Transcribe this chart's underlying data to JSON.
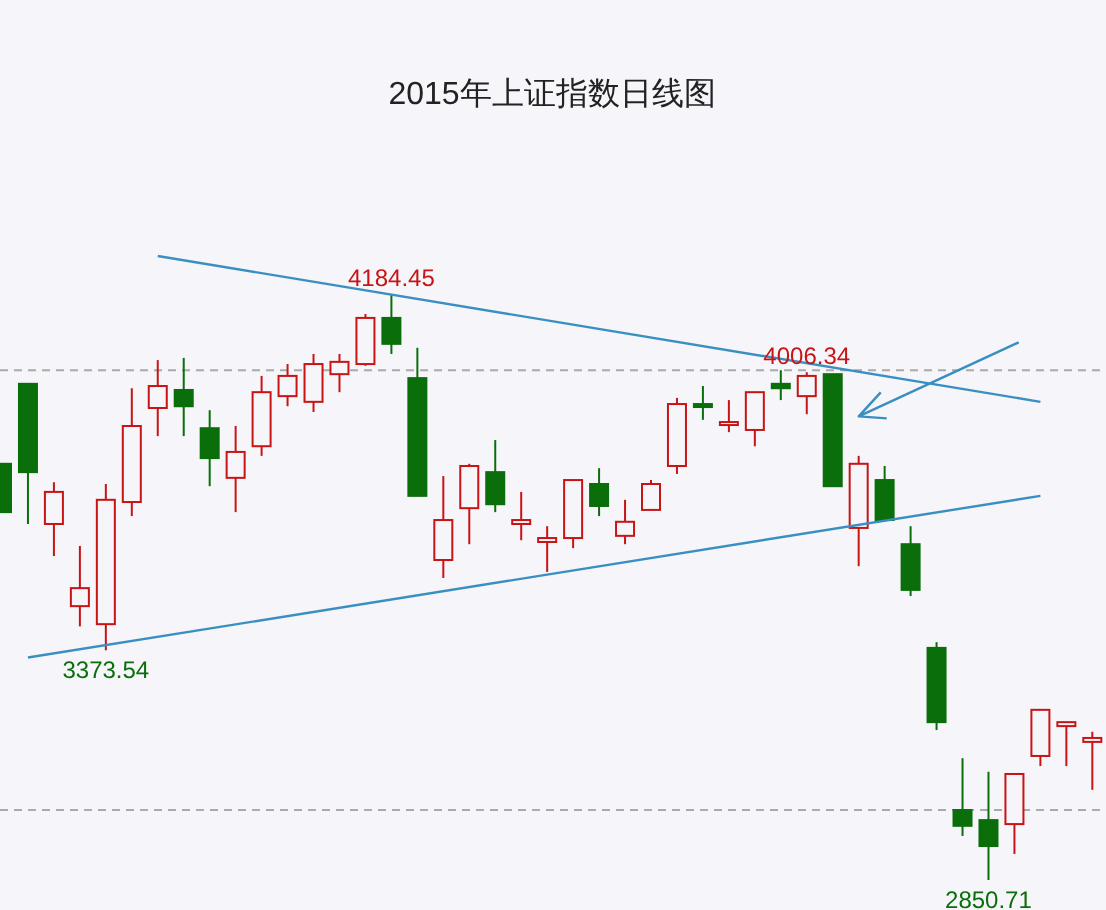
{
  "chart_data": {
    "type": "candlestick",
    "title": "2015年上证指数日线图",
    "categories": [
      null,
      null,
      null,
      null,
      null,
      null,
      null,
      null,
      null,
      null,
      null,
      null,
      null,
      null,
      null,
      null,
      null,
      null,
      null,
      null,
      null,
      null,
      null,
      null,
      null,
      null,
      null,
      null,
      null,
      null,
      null,
      null,
      null,
      null,
      null,
      null,
      null,
      null,
      null,
      null,
      null,
      null,
      null
    ],
    "ohlc": [
      [
        3798,
        3798,
        3688,
        3688
      ],
      [
        3980,
        3980,
        3661,
        3779
      ],
      [
        3661,
        3756,
        3588,
        3734
      ],
      [
        3474,
        3611,
        3428,
        3515
      ],
      [
        3433,
        3752,
        3373.54,
        3716
      ],
      [
        3711,
        3970,
        3679,
        3884
      ],
      [
        3925,
        4034,
        3861,
        3975
      ],
      [
        3966,
        4039,
        3861,
        3929
      ],
      [
        3879,
        3920,
        3747,
        3811
      ],
      [
        3766,
        3884,
        3688,
        3825
      ],
      [
        3838,
        3998,
        3816,
        3961
      ],
      [
        3952,
        4025,
        3929,
        3998
      ],
      [
        3939,
        4048,
        3916,
        4025
      ],
      [
        4002,
        4048,
        3961,
        4030
      ],
      [
        4025,
        4139,
        4021,
        4130
      ],
      [
        4130,
        4184.45,
        4048,
        4071
      ],
      [
        3993,
        4062,
        3725,
        3725
      ],
      [
        3579,
        3770,
        3538,
        3670
      ],
      [
        3697,
        3798,
        3615,
        3793
      ],
      [
        3779,
        3852,
        3688,
        3706
      ],
      [
        3661,
        3734,
        3624,
        3670
      ],
      [
        3620,
        3656,
        3552,
        3629
      ],
      [
        3629,
        3761,
        3606,
        3761
      ],
      [
        3752,
        3788,
        3679,
        3702
      ],
      [
        3634,
        3716,
        3615,
        3666
      ],
      [
        3693,
        3761,
        3693,
        3752
      ],
      [
        3793,
        3948,
        3775,
        3934
      ],
      [
        3934,
        3975,
        3898,
        3929
      ],
      [
        3888,
        3943,
        3870,
        3893
      ],
      [
        3875,
        3961,
        3838,
        3961
      ],
      [
        3980,
        4011,
        3943,
        3970
      ],
      [
        3952,
        4006.34,
        3911,
        3998
      ],
      [
        4002,
        4002,
        3747,
        3747
      ],
      [
        3652,
        3816,
        3565,
        3798
      ],
      [
        3761,
        3793,
        3670,
        3670
      ],
      [
        3615,
        3656,
        3497,
        3511
      ],
      [
        3379,
        3392,
        3192,
        3210
      ],
      [
        3010,
        3128,
        2951,
        2974
      ],
      [
        2987,
        3097,
        2850.71,
        2928
      ],
      [
        2978,
        3092,
        2910,
        3092
      ],
      [
        3133,
        3238,
        3110,
        3238
      ],
      [
        3201,
        3210,
        3110,
        3210
      ],
      [
        3165,
        3188,
        3056,
        3174
      ]
    ],
    "series": [
      {
        "type": "line",
        "color": "#3a8fc0",
        "values": [
          null,
          null,
          null,
          null,
          null,
          null,
          4271,
          null,
          null,
          null,
          null,
          null,
          null,
          null,
          null,
          null,
          null,
          null,
          null,
          null,
          null,
          null,
          null,
          null,
          null,
          null,
          null,
          null,
          null,
          null,
          null,
          null,
          null,
          null,
          null,
          null,
          null,
          null,
          null,
          null,
          3939,
          null,
          null
        ]
      },
      {
        "type": "line",
        "color": "#3a8fc0",
        "values": [
          null,
          3357,
          null,
          null,
          null,
          null,
          null,
          null,
          null,
          null,
          null,
          null,
          null,
          null,
          null,
          null,
          null,
          null,
          null,
          null,
          null,
          null,
          null,
          null,
          null,
          null,
          null,
          null,
          null,
          null,
          null,
          null,
          null,
          null,
          null,
          null,
          null,
          null,
          null,
          null,
          3725,
          null,
          null
        ]
      }
    ],
    "ref_lines": [
      {
        "axis": "y",
        "value": 4011,
        "color": "#aaaaaa",
        "line_style": "dashed"
      },
      {
        "axis": "y",
        "value": 3010,
        "color": "#aaaaaa",
        "line_style": "dashed"
      }
    ],
    "annotations": [
      {
        "text": "4184.45",
        "y": 4184.45
      },
      {
        "text": "4006.34",
        "y": 4006.34
      },
      {
        "text": "3373.54",
        "y": 3373.54
      },
      {
        "text": "2850.71",
        "y": 2850.71
      }
    ]
  }
}
